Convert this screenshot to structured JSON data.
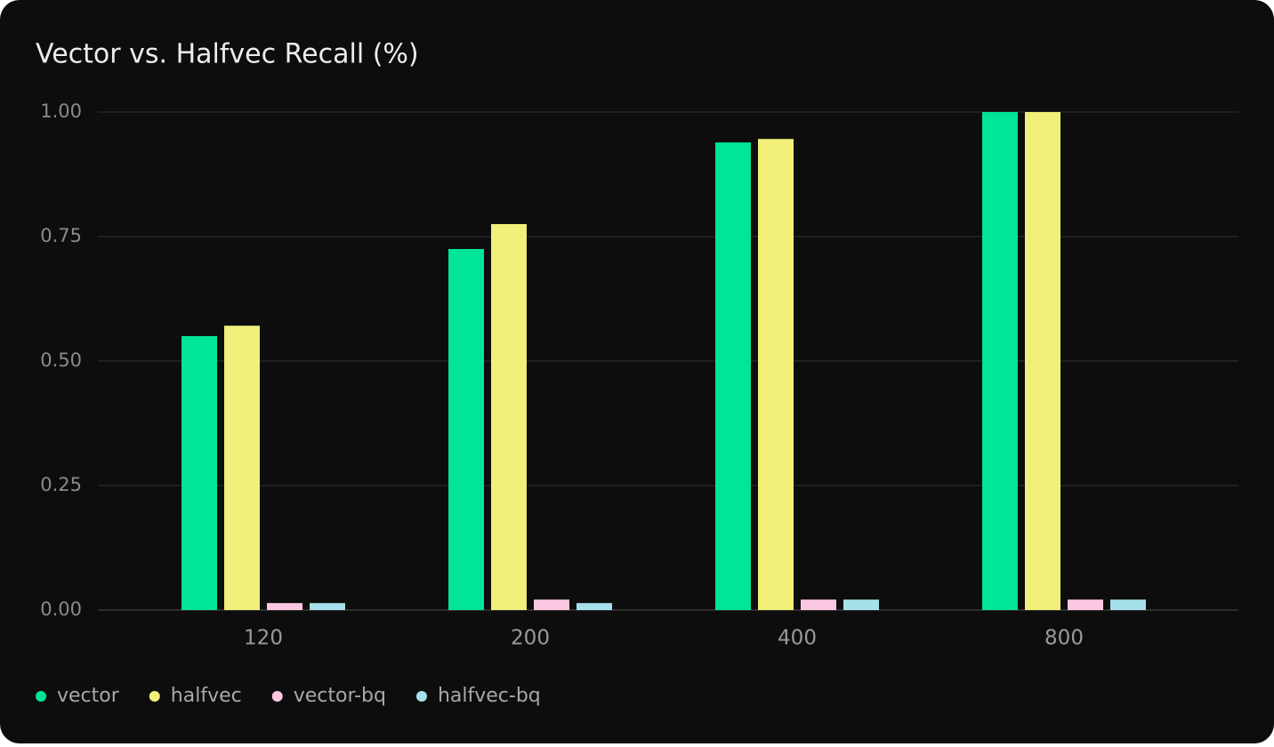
{
  "chart_data": {
    "type": "bar",
    "title": "Vector vs. Halfvec Recall (%)",
    "categories": [
      "120",
      "200",
      "400",
      "800"
    ],
    "series": [
      {
        "name": "vector",
        "color": "#00e599",
        "values": [
          0.55,
          0.725,
          0.939,
          1.0
        ]
      },
      {
        "name": "halfvec",
        "color": "#f0ef7a",
        "values": [
          0.571,
          0.775,
          0.946,
          1.0
        ]
      },
      {
        "name": "vector-bq",
        "color": "#fcc7e0",
        "values": [
          0.014,
          0.021,
          0.021,
          0.021
        ]
      },
      {
        "name": "halfvec-bq",
        "color": "#a6e0ea",
        "values": [
          0.014,
          0.014,
          0.021,
          0.021
        ]
      }
    ],
    "ylim": [
      0,
      1
    ],
    "yticks": [
      {
        "value": 0,
        "label": "0.00"
      },
      {
        "value": 0.25,
        "label": "0.25"
      },
      {
        "value": 0.5,
        "label": "0.50"
      },
      {
        "value": 0.75,
        "label": "0.75"
      },
      {
        "value": 1,
        "label": "1.00"
      }
    ],
    "grid": true,
    "legend": "bottom-left"
  }
}
